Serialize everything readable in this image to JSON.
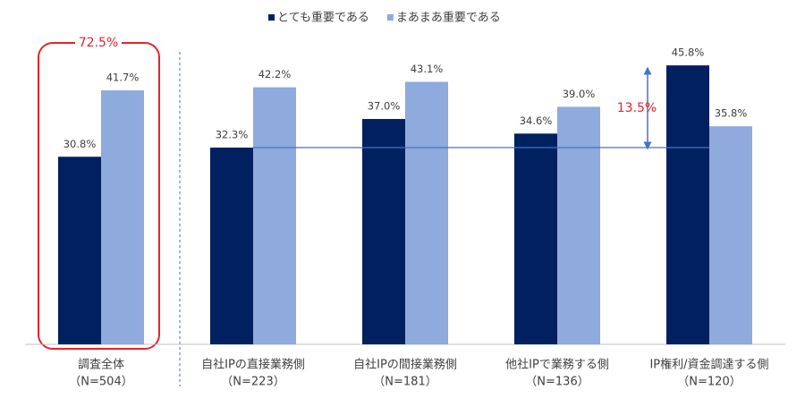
{
  "chart_data": {
    "type": "bar",
    "categories": [
      [
        "調査全体",
        "（N=504）"
      ],
      [
        "自社IPの直接業務側",
        "（N=223）"
      ],
      [
        "自社IPの間接業務側",
        "（N=181）"
      ],
      [
        "他社IPで業務する側",
        "（N=136）"
      ],
      [
        "IP権利/資金調達する側",
        "（N=120）"
      ]
    ],
    "series": [
      {
        "name": "とても重要である",
        "color": "#002060",
        "values": [
          30.8,
          32.3,
          37.0,
          34.6,
          45.8
        ],
        "value_labels": [
          "30.8%",
          "32.3%",
          "37.0%",
          "34.6%",
          "45.8%"
        ]
      },
      {
        "name": "まあまあ重要である",
        "color": "#8faadc",
        "values": [
          41.7,
          42.2,
          43.1,
          39.0,
          35.8
        ],
        "value_labels": [
          "41.7%",
          "42.2%",
          "43.1%",
          "39.0%",
          "35.8%"
        ]
      }
    ],
    "ylim": [
      0,
      50
    ],
    "annotations": [
      "72.5%",
      "13.5%"
    ]
  }
}
